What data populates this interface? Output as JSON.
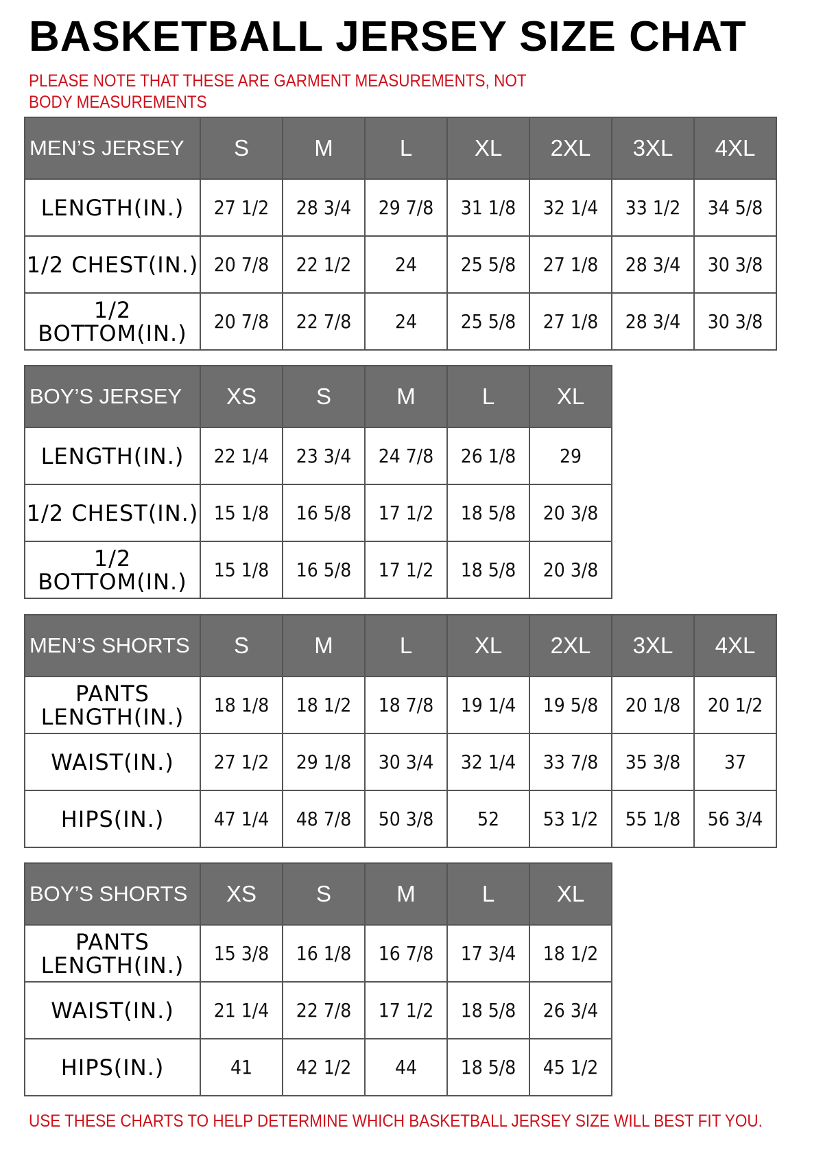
{
  "title": "BASKETBALL JERSEY SIZE CHAT",
  "note": "PLEASE NOTE THAT THESE ARE GARMENT MEASUREMENTS, NOT BODY MEASUREMENTS",
  "footer": "USE THESE CHARTS TO HELP DETERMINE WHICH BASKETBALL JERSEY SIZE WILL BEST FIT YOU.",
  "colors": {
    "header_bg": "#6e6e6e",
    "note_red": "#d0101a"
  },
  "tables": [
    {
      "header": "MEN’S JERSEY",
      "sizes": [
        "S",
        "M",
        "L",
        "XL",
        "2XL",
        "3XL",
        "4XL"
      ],
      "rows": [
        {
          "label": "LENGTH(IN.)",
          "values": [
            "27 1/2",
            "28 3/4",
            "29 7/8",
            "31 1/8",
            "32 1/4",
            "33 1/2",
            "34 5/8"
          ]
        },
        {
          "label": "1/2 CHEST(IN.)",
          "values": [
            "20 7/8",
            "22 1/2",
            "24",
            "25 5/8",
            "27 1/8",
            "28 3/4",
            "30 3/8"
          ]
        },
        {
          "label": "1/2 BOTTOM(IN.)",
          "values": [
            "20 7/8",
            "22 7/8",
            "24",
            "25 5/8",
            "27 1/8",
            "28 3/4",
            "30 3/8"
          ]
        }
      ]
    },
    {
      "header": "BOY’S JERSEY",
      "sizes": [
        "XS",
        "S",
        "M",
        "L",
        "XL"
      ],
      "rows": [
        {
          "label": "LENGTH(IN.)",
          "values": [
            "22 1/4",
            "23 3/4",
            "24 7/8",
            "26 1/8",
            "29"
          ]
        },
        {
          "label": "1/2 CHEST(IN.)",
          "values": [
            "15 1/8",
            "16 5/8",
            "17 1/2",
            "18 5/8",
            "20 3/8"
          ]
        },
        {
          "label": "1/2 BOTTOM(IN.)",
          "values": [
            "15 1/8",
            "16 5/8",
            "17 1/2",
            "18 5/8",
            "20 3/8"
          ]
        }
      ]
    },
    {
      "header": "MEN’S SHORTS",
      "sizes": [
        "S",
        "M",
        "L",
        "XL",
        "2XL",
        "3XL",
        "4XL"
      ],
      "rows": [
        {
          "label": "PANTS LENGTH(IN.)",
          "values": [
            "18 1/8",
            "18 1/2",
            "18 7/8",
            "19 1/4",
            "19 5/8",
            "20 1/8",
            "20 1/2"
          ]
        },
        {
          "label": "WAIST(IN.)",
          "values": [
            "27 1/2",
            "29 1/8",
            "30 3/4",
            "32 1/4",
            "33 7/8",
            "35 3/8",
            "37"
          ]
        },
        {
          "label": "HIPS(IN.)",
          "values": [
            "47 1/4",
            "48 7/8",
            "50 3/8",
            "52",
            "53 1/2",
            "55 1/8",
            "56 3/4"
          ]
        }
      ]
    },
    {
      "header": "BOY’S SHORTS",
      "sizes": [
        "XS",
        "S",
        "M",
        "L",
        "XL"
      ],
      "rows": [
        {
          "label": "PANTS LENGTH(IN.)",
          "values": [
            "15 3/8",
            "16 1/8",
            "16 7/8",
            "17 3/4",
            "18 1/2"
          ]
        },
        {
          "label": "WAIST(IN.)",
          "values": [
            "21 1/4",
            "22 7/8",
            "17 1/2",
            "18 5/8",
            "26 3/4"
          ]
        },
        {
          "label": "HIPS(IN.)",
          "values": [
            "41",
            "42 1/2",
            "44",
            "18 5/8",
            "45 1/2"
          ]
        }
      ]
    }
  ]
}
